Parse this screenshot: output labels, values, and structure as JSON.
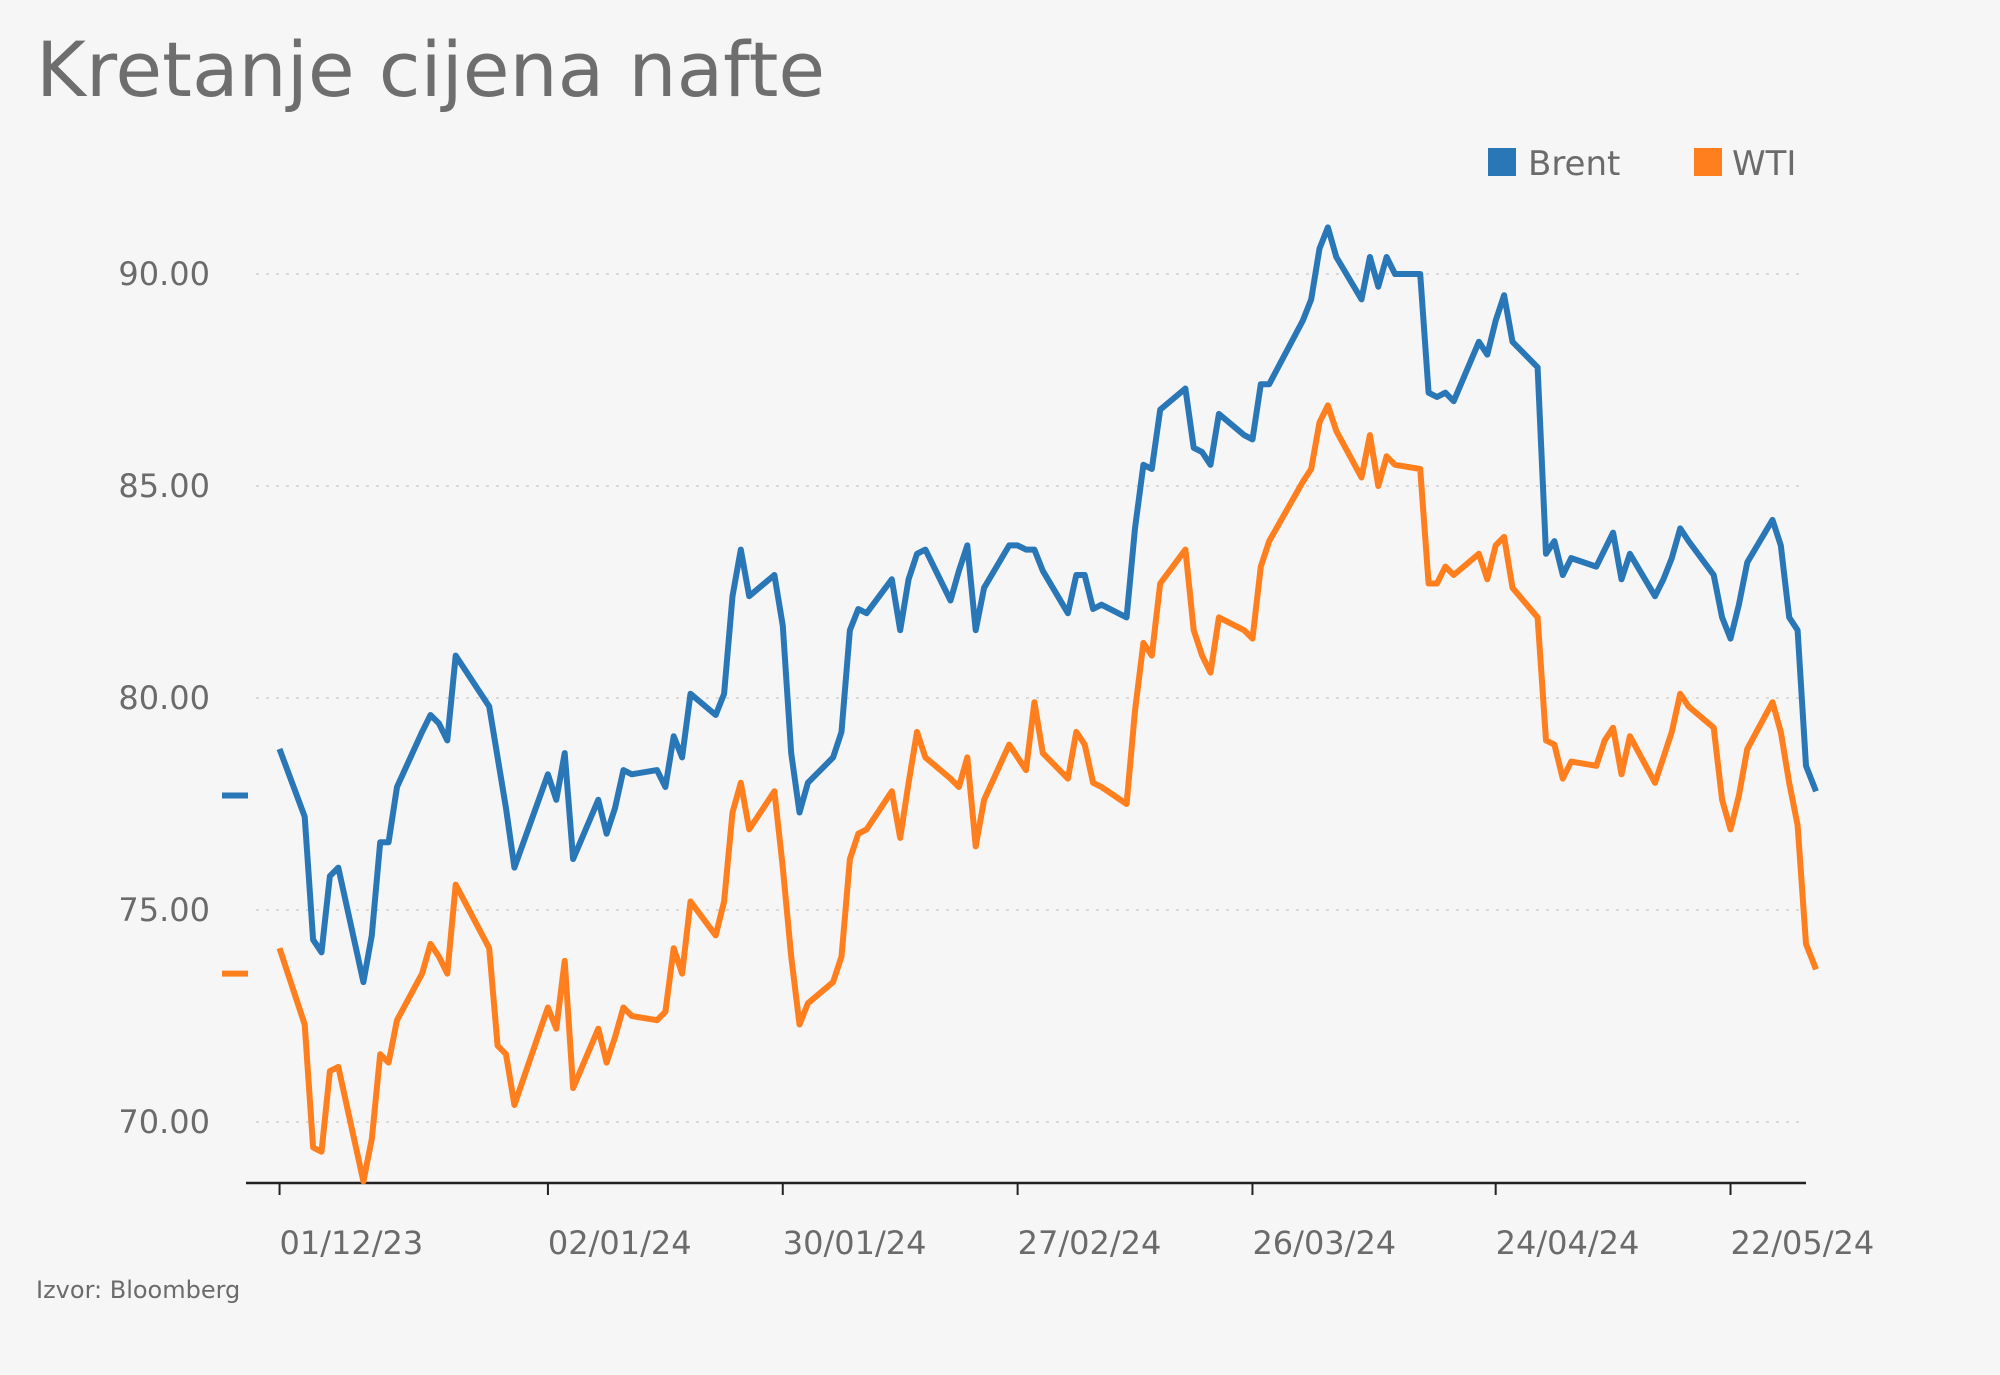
{
  "chart_data": {
    "type": "line",
    "title": "Kretanje cijena nafte",
    "source": "Izvor: Bloomberg",
    "xlabel": "",
    "ylabel": "",
    "ylim": [
      68.6,
      91.5
    ],
    "y_ticks": [
      "90.00",
      "85.00",
      "80.00",
      "75.00",
      "70.00"
    ],
    "y_tick_values": [
      90,
      85,
      80,
      75,
      70
    ],
    "grid": "horizontal-dotted",
    "legend_position": "top-right",
    "x_range": [
      "2023-11-27",
      "2024-05-31"
    ],
    "x_ticks": [
      {
        "label": "01/12/23",
        "date": "2023-12-01"
      },
      {
        "label": "02/01/24",
        "date": "2024-01-02"
      },
      {
        "label": "30/01/24",
        "date": "2024-01-30"
      },
      {
        "label": "27/02/24",
        "date": "2024-02-27"
      },
      {
        "label": "26/03/24",
        "date": "2024-03-26"
      },
      {
        "label": "24/04/24",
        "date": "2024-04-24"
      },
      {
        "label": "22/05/24",
        "date": "2024-05-22"
      }
    ],
    "series": [
      {
        "name": "Brent",
        "color": "#2a77b8",
        "start_marker": 77.7,
        "points": [
          [
            "2023-12-01",
            78.8
          ],
          [
            "2023-12-04",
            77.2
          ],
          [
            "2023-12-05",
            74.3
          ],
          [
            "2023-12-06",
            74.0
          ],
          [
            "2023-12-07",
            75.8
          ],
          [
            "2023-12-08",
            76.0
          ],
          [
            "2023-12-11",
            73.3
          ],
          [
            "2023-12-12",
            74.4
          ],
          [
            "2023-12-13",
            76.6
          ],
          [
            "2023-12-14",
            76.6
          ],
          [
            "2023-12-15",
            77.9
          ],
          [
            "2023-12-18",
            79.2
          ],
          [
            "2023-12-19",
            79.6
          ],
          [
            "2023-12-20",
            79.4
          ],
          [
            "2023-12-21",
            79.0
          ],
          [
            "2023-12-22",
            81.0
          ],
          [
            "2023-12-26",
            79.8
          ],
          [
            "2023-12-27",
            78.6
          ],
          [
            "2023-12-28",
            77.4
          ],
          [
            "2023-12-29",
            76.0
          ],
          [
            "2024-01-02",
            78.2
          ],
          [
            "2024-01-03",
            77.6
          ],
          [
            "2024-01-04",
            78.7
          ],
          [
            "2024-01-05",
            76.2
          ],
          [
            "2024-01-08",
            77.6
          ],
          [
            "2024-01-09",
            76.8
          ],
          [
            "2024-01-10",
            77.4
          ],
          [
            "2024-01-11",
            78.3
          ],
          [
            "2024-01-12",
            78.2
          ],
          [
            "2024-01-15",
            78.3
          ],
          [
            "2024-01-16",
            77.9
          ],
          [
            "2024-01-17",
            79.1
          ],
          [
            "2024-01-18",
            78.6
          ],
          [
            "2024-01-19",
            80.1
          ],
          [
            "2024-01-22",
            79.6
          ],
          [
            "2024-01-23",
            80.1
          ],
          [
            "2024-01-24",
            82.4
          ],
          [
            "2024-01-25",
            83.5
          ],
          [
            "2024-01-26",
            82.4
          ],
          [
            "2024-01-29",
            82.9
          ],
          [
            "2024-01-30",
            81.7
          ],
          [
            "2024-01-31",
            78.7
          ],
          [
            "2024-02-01",
            77.3
          ],
          [
            "2024-02-02",
            78.0
          ],
          [
            "2024-02-05",
            78.6
          ],
          [
            "2024-02-06",
            79.2
          ],
          [
            "2024-02-07",
            81.6
          ],
          [
            "2024-02-08",
            82.1
          ],
          [
            "2024-02-09",
            82.0
          ],
          [
            "2024-02-12",
            82.8
          ],
          [
            "2024-02-13",
            81.6
          ],
          [
            "2024-02-14",
            82.8
          ],
          [
            "2024-02-15",
            83.4
          ],
          [
            "2024-02-16",
            83.5
          ],
          [
            "2024-02-19",
            82.3
          ],
          [
            "2024-02-20",
            83.0
          ],
          [
            "2024-02-21",
            83.6
          ],
          [
            "2024-02-22",
            81.6
          ],
          [
            "2024-02-23",
            82.6
          ],
          [
            "2024-02-26",
            83.6
          ],
          [
            "2024-02-27",
            83.6
          ],
          [
            "2024-02-28",
            83.5
          ],
          [
            "2024-02-29",
            83.5
          ],
          [
            "2024-03-01",
            83.0
          ],
          [
            "2024-03-04",
            82.0
          ],
          [
            "2024-03-05",
            82.9
          ],
          [
            "2024-03-06",
            82.9
          ],
          [
            "2024-03-07",
            82.1
          ],
          [
            "2024-03-08",
            82.2
          ],
          [
            "2024-03-11",
            81.9
          ],
          [
            "2024-03-12",
            84.0
          ],
          [
            "2024-03-13",
            85.5
          ],
          [
            "2024-03-14",
            85.4
          ],
          [
            "2024-03-15",
            86.8
          ],
          [
            "2024-03-18",
            87.3
          ],
          [
            "2024-03-19",
            85.9
          ],
          [
            "2024-03-20",
            85.8
          ],
          [
            "2024-03-21",
            85.5
          ],
          [
            "2024-03-22",
            86.7
          ],
          [
            "2024-03-25",
            86.2
          ],
          [
            "2024-03-26",
            86.1
          ],
          [
            "2024-03-27",
            87.4
          ],
          [
            "2024-03-28",
            87.4
          ],
          [
            "2024-04-01",
            88.9
          ],
          [
            "2024-04-02",
            89.4
          ],
          [
            "2024-04-03",
            90.6
          ],
          [
            "2024-04-04",
            91.1
          ],
          [
            "2024-04-05",
            90.4
          ],
          [
            "2024-04-08",
            89.4
          ],
          [
            "2024-04-09",
            90.4
          ],
          [
            "2024-04-10",
            89.7
          ],
          [
            "2024-04-11",
            90.4
          ],
          [
            "2024-04-12",
            90.0
          ],
          [
            "2024-04-15",
            90.0
          ],
          [
            "2024-04-16",
            87.2
          ],
          [
            "2024-04-17",
            87.1
          ],
          [
            "2024-04-18",
            87.2
          ],
          [
            "2024-04-19",
            87.0
          ],
          [
            "2024-04-22",
            88.4
          ],
          [
            "2024-04-23",
            88.1
          ],
          [
            "2024-04-24",
            88.9
          ],
          [
            "2024-04-25",
            89.5
          ],
          [
            "2024-04-26",
            88.4
          ],
          [
            "2024-04-29",
            87.8
          ],
          [
            "2024-04-30",
            83.4
          ],
          [
            "2024-05-01",
            83.7
          ],
          [
            "2024-05-02",
            82.9
          ],
          [
            "2024-05-03",
            83.3
          ],
          [
            "2024-05-06",
            83.1
          ],
          [
            "2024-05-07",
            83.5
          ],
          [
            "2024-05-08",
            83.9
          ],
          [
            "2024-05-09",
            82.8
          ],
          [
            "2024-05-10",
            83.4
          ],
          [
            "2024-05-13",
            82.4
          ],
          [
            "2024-05-14",
            82.8
          ],
          [
            "2024-05-15",
            83.3
          ],
          [
            "2024-05-16",
            84.0
          ],
          [
            "2024-05-17",
            83.7
          ],
          [
            "2024-05-20",
            82.9
          ],
          [
            "2024-05-21",
            81.9
          ],
          [
            "2024-05-22",
            81.4
          ],
          [
            "2024-05-23",
            82.2
          ],
          [
            "2024-05-24",
            83.2
          ],
          [
            "2024-05-27",
            84.2
          ],
          [
            "2024-05-28",
            83.6
          ],
          [
            "2024-05-29",
            81.9
          ],
          [
            "2024-05-30",
            81.6
          ],
          [
            "2024-05-31",
            78.4
          ],
          [
            "2024-05-31",
            77.8
          ]
        ]
      },
      {
        "name": "WTI",
        "color": "#ff7f1e",
        "start_marker": 73.5,
        "points": [
          [
            "2023-12-01",
            74.1
          ],
          [
            "2023-12-04",
            72.3
          ],
          [
            "2023-12-05",
            69.4
          ],
          [
            "2023-12-06",
            69.3
          ],
          [
            "2023-12-07",
            71.2
          ],
          [
            "2023-12-08",
            71.3
          ],
          [
            "2023-12-11",
            68.6
          ],
          [
            "2023-12-12",
            69.6
          ],
          [
            "2023-12-13",
            71.6
          ],
          [
            "2023-12-14",
            71.4
          ],
          [
            "2023-12-15",
            72.4
          ],
          [
            "2023-12-18",
            73.5
          ],
          [
            "2023-12-19",
            74.2
          ],
          [
            "2023-12-20",
            73.9
          ],
          [
            "2023-12-21",
            73.5
          ],
          [
            "2023-12-22",
            75.6
          ],
          [
            "2023-12-26",
            74.1
          ],
          [
            "2023-12-27",
            71.8
          ],
          [
            "2023-12-28",
            71.6
          ],
          [
            "2023-12-29",
            70.4
          ],
          [
            "2024-01-02",
            72.7
          ],
          [
            "2024-01-03",
            72.2
          ],
          [
            "2024-01-04",
            73.8
          ],
          [
            "2024-01-05",
            70.8
          ],
          [
            "2024-01-08",
            72.2
          ],
          [
            "2024-01-09",
            71.4
          ],
          [
            "2024-01-10",
            72.0
          ],
          [
            "2024-01-11",
            72.7
          ],
          [
            "2024-01-12",
            72.5
          ],
          [
            "2024-01-15",
            72.4
          ],
          [
            "2024-01-16",
            72.6
          ],
          [
            "2024-01-17",
            74.1
          ],
          [
            "2024-01-18",
            73.5
          ],
          [
            "2024-01-19",
            75.2
          ],
          [
            "2024-01-22",
            74.4
          ],
          [
            "2024-01-23",
            75.2
          ],
          [
            "2024-01-24",
            77.3
          ],
          [
            "2024-01-25",
            78.0
          ],
          [
            "2024-01-26",
            76.9
          ],
          [
            "2024-01-29",
            77.8
          ],
          [
            "2024-01-30",
            76.0
          ],
          [
            "2024-01-31",
            73.9
          ],
          [
            "2024-02-01",
            72.3
          ],
          [
            "2024-02-02",
            72.8
          ],
          [
            "2024-02-05",
            73.3
          ],
          [
            "2024-02-06",
            73.9
          ],
          [
            "2024-02-07",
            76.2
          ],
          [
            "2024-02-08",
            76.8
          ],
          [
            "2024-02-09",
            76.9
          ],
          [
            "2024-02-12",
            77.8
          ],
          [
            "2024-02-13",
            76.7
          ],
          [
            "2024-02-14",
            78.0
          ],
          [
            "2024-02-15",
            79.2
          ],
          [
            "2024-02-16",
            78.6
          ],
          [
            "2024-02-19",
            78.1
          ],
          [
            "2024-02-20",
            77.9
          ],
          [
            "2024-02-21",
            78.6
          ],
          [
            "2024-02-22",
            76.5
          ],
          [
            "2024-02-23",
            77.6
          ],
          [
            "2024-02-26",
            78.9
          ],
          [
            "2024-02-27",
            78.6
          ],
          [
            "2024-02-28",
            78.3
          ],
          [
            "2024-02-29",
            79.9
          ],
          [
            "2024-03-01",
            78.7
          ],
          [
            "2024-03-04",
            78.1
          ],
          [
            "2024-03-05",
            79.2
          ],
          [
            "2024-03-06",
            78.9
          ],
          [
            "2024-03-07",
            78.0
          ],
          [
            "2024-03-08",
            77.9
          ],
          [
            "2024-03-11",
            77.5
          ],
          [
            "2024-03-12",
            79.7
          ],
          [
            "2024-03-13",
            81.3
          ],
          [
            "2024-03-14",
            81.0
          ],
          [
            "2024-03-15",
            82.7
          ],
          [
            "2024-03-18",
            83.5
          ],
          [
            "2024-03-19",
            81.6
          ],
          [
            "2024-03-20",
            81.0
          ],
          [
            "2024-03-21",
            80.6
          ],
          [
            "2024-03-22",
            81.9
          ],
          [
            "2024-03-25",
            81.6
          ],
          [
            "2024-03-26",
            81.4
          ],
          [
            "2024-03-27",
            83.1
          ],
          [
            "2024-03-28",
            83.7
          ],
          [
            "2024-04-01",
            85.1
          ],
          [
            "2024-04-02",
            85.4
          ],
          [
            "2024-04-03",
            86.5
          ],
          [
            "2024-04-04",
            86.9
          ],
          [
            "2024-04-05",
            86.3
          ],
          [
            "2024-04-08",
            85.2
          ],
          [
            "2024-04-09",
            86.2
          ],
          [
            "2024-04-10",
            85.0
          ],
          [
            "2024-04-11",
            85.7
          ],
          [
            "2024-04-12",
            85.5
          ],
          [
            "2024-04-15",
            85.4
          ],
          [
            "2024-04-16",
            82.7
          ],
          [
            "2024-04-17",
            82.7
          ],
          [
            "2024-04-18",
            83.1
          ],
          [
            "2024-04-19",
            82.9
          ],
          [
            "2024-04-22",
            83.4
          ],
          [
            "2024-04-23",
            82.8
          ],
          [
            "2024-04-24",
            83.6
          ],
          [
            "2024-04-25",
            83.8
          ],
          [
            "2024-04-26",
            82.6
          ],
          [
            "2024-04-29",
            81.9
          ],
          [
            "2024-04-30",
            79.0
          ],
          [
            "2024-05-01",
            78.9
          ],
          [
            "2024-05-02",
            78.1
          ],
          [
            "2024-05-03",
            78.5
          ],
          [
            "2024-05-06",
            78.4
          ],
          [
            "2024-05-07",
            79.0
          ],
          [
            "2024-05-08",
            79.3
          ],
          [
            "2024-05-09",
            78.2
          ],
          [
            "2024-05-10",
            79.1
          ],
          [
            "2024-05-13",
            78.0
          ],
          [
            "2024-05-14",
            78.6
          ],
          [
            "2024-05-15",
            79.2
          ],
          [
            "2024-05-16",
            80.1
          ],
          [
            "2024-05-17",
            79.8
          ],
          [
            "2024-05-20",
            79.3
          ],
          [
            "2024-05-21",
            77.6
          ],
          [
            "2024-05-22",
            76.9
          ],
          [
            "2024-05-23",
            77.7
          ],
          [
            "2024-05-24",
            78.8
          ],
          [
            "2024-05-27",
            79.9
          ],
          [
            "2024-05-28",
            79.2
          ],
          [
            "2024-05-29",
            78.0
          ],
          [
            "2024-05-30",
            77.0
          ],
          [
            "2024-05-31",
            74.2
          ],
          [
            "2024-05-31",
            73.6
          ]
        ]
      }
    ]
  }
}
